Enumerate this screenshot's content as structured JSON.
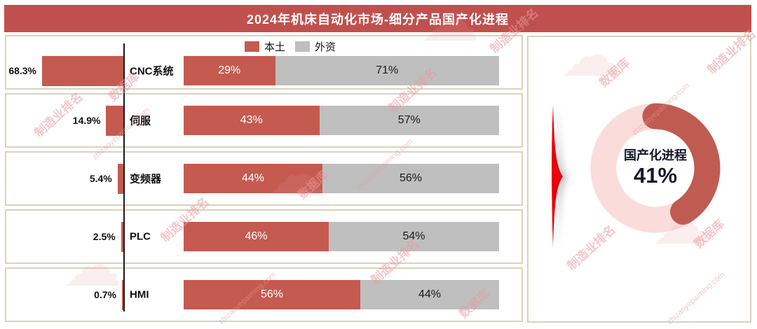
{
  "title": "2024年机床自动化市场-细分产品国产化进程",
  "legend": {
    "local": "本土",
    "foreign": "外资"
  },
  "rows": [
    {
      "category": "CNC系统",
      "share": 68.3,
      "share_label": "68.3%",
      "local": 29,
      "local_label": "29%",
      "foreign": 71,
      "foreign_label": "71%"
    },
    {
      "category": "伺服",
      "share": 14.9,
      "share_label": "14.9%",
      "local": 43,
      "local_label": "43%",
      "foreign": 57,
      "foreign_label": "57%"
    },
    {
      "category": "变频器",
      "share": 5.4,
      "share_label": "5.4%",
      "local": 44,
      "local_label": "44%",
      "foreign": 56,
      "foreign_label": "56%"
    },
    {
      "category": "PLC",
      "share": 2.5,
      "share_label": "2.5%",
      "local": 46,
      "local_label": "46%",
      "foreign": 54,
      "foreign_label": "54%"
    },
    {
      "category": "HMI",
      "share": 0.7,
      "share_label": "0.7%",
      "local": 56,
      "local_label": "56%",
      "foreign": 44,
      "foreign_label": "44%"
    }
  ],
  "donut": {
    "label": "国产化进程",
    "value": 41,
    "value_label": "41%"
  },
  "chart_data": [
    {
      "type": "bar",
      "subtype": "horizontal-left",
      "title": "细分产品市场份额",
      "categories": [
        "CNC系统",
        "伺服",
        "变频器",
        "PLC",
        "HMI"
      ],
      "values": [
        68.3,
        14.9,
        5.4,
        2.5,
        0.7
      ],
      "unit": "%"
    },
    {
      "type": "bar",
      "subtype": "stacked-horizontal-100",
      "categories": [
        "CNC系统",
        "伺服",
        "变频器",
        "PLC",
        "HMI"
      ],
      "series": [
        {
          "name": "本土",
          "values": [
            29,
            43,
            44,
            46,
            56
          ]
        },
        {
          "name": "外资",
          "values": [
            71,
            57,
            56,
            54,
            44
          ]
        }
      ],
      "unit": "%",
      "legend_position": "top"
    },
    {
      "type": "pie",
      "subtype": "donut",
      "title": "国产化进程",
      "segments": [
        {
          "name": "国产化进程",
          "value": 41
        },
        {
          "name": "",
          "value": 59
        }
      ],
      "center_label": "国产化进程",
      "center_value": "41%"
    }
  ],
  "watermark": {
    "brand": "制造业排名",
    "db": "数据库",
    "site": "zhizaoyepaiming.com",
    "cloud_icon": "cloud-icon"
  },
  "colors": {
    "banner": "#C0504D",
    "local": "#C45A50",
    "foreign": "#BFBFBF",
    "border": "#D9D2BC",
    "arrow": "#E8000B",
    "donut_dark": "#C05B52",
    "donut_light": "#FADCDA",
    "wm": "#E89A9E"
  }
}
